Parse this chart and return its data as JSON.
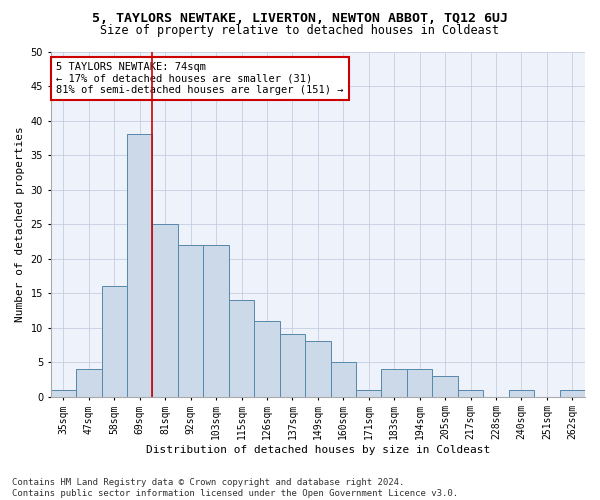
{
  "title": "5, TAYLORS NEWTAKE, LIVERTON, NEWTON ABBOT, TQ12 6UJ",
  "subtitle": "Size of property relative to detached houses in Coldeast",
  "xlabel": "Distribution of detached houses by size in Coldeast",
  "ylabel": "Number of detached properties",
  "bar_labels": [
    "35sqm",
    "47sqm",
    "58sqm",
    "69sqm",
    "81sqm",
    "92sqm",
    "103sqm",
    "115sqm",
    "126sqm",
    "137sqm",
    "149sqm",
    "160sqm",
    "171sqm",
    "183sqm",
    "194sqm",
    "205sqm",
    "217sqm",
    "228sqm",
    "240sqm",
    "251sqm",
    "262sqm"
  ],
  "bar_values": [
    1,
    4,
    16,
    38,
    25,
    22,
    22,
    14,
    11,
    9,
    8,
    5,
    1,
    4,
    4,
    3,
    1,
    0,
    1,
    0,
    1
  ],
  "bar_color": "#ccd9e8",
  "bar_edge_color": "#5588aa",
  "red_line_x": 3.5,
  "annotation_line1": "5 TAYLORS NEWTAKE: 74sqm",
  "annotation_line2": "← 17% of detached houses are smaller (31)",
  "annotation_line3": "81% of semi-detached houses are larger (151) →",
  "annotation_box_color": "#ffffff",
  "annotation_box_edge_color": "#cc0000",
  "ylim": [
    0,
    50
  ],
  "yticks": [
    0,
    5,
    10,
    15,
    20,
    25,
    30,
    35,
    40,
    45,
    50
  ],
  "footer_line1": "Contains HM Land Registry data © Crown copyright and database right 2024.",
  "footer_line2": "Contains public sector information licensed under the Open Government Licence v3.0.",
  "bg_color": "#eef2fa",
  "grid_color": "#c5cde0",
  "title_fontsize": 9.5,
  "subtitle_fontsize": 8.5,
  "axis_label_fontsize": 8,
  "tick_fontsize": 7,
  "annotation_fontsize": 7.5,
  "footer_fontsize": 6.5
}
